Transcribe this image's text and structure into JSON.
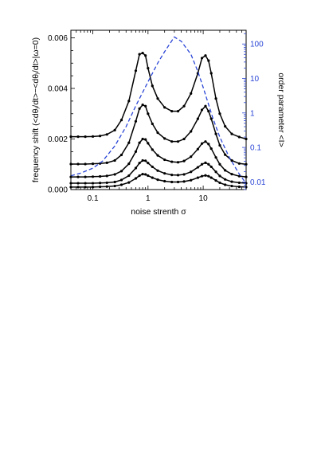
{
  "chart_data": {
    "type": "line",
    "title": "",
    "xlabel": "noise strenth σ",
    "ylabel": "frequency shift (<dθⱼ/dt>−<dθⱼ/dt>|ω=0)",
    "y2label": "order parameter <I>",
    "x_scale": "log",
    "xlim": [
      0.04,
      60
    ],
    "ylim": [
      0,
      0.0063
    ],
    "y2_scale": "log",
    "y2lim": [
      0.006,
      250
    ],
    "x_ticks": [
      0.1,
      1,
      10
    ],
    "x_tick_labels": [
      "0.1",
      "1",
      "10"
    ],
    "y_ticks": [
      0,
      0.002,
      0.004,
      0.006
    ],
    "y_tick_labels": [
      "0.000",
      "0.002",
      "0.004",
      "0.006"
    ],
    "y2_ticks": [
      0.01,
      0.1,
      1,
      10,
      100
    ],
    "y2_tick_labels": [
      "0.01",
      "0.1",
      "1",
      "10",
      "100"
    ],
    "colors": {
      "series": "#000000",
      "order_parameter": "#2a45d6",
      "axis": "#000000",
      "right_axis": "#2a45d6"
    },
    "legend": "none",
    "grid": false,
    "series": [
      {
        "axis": "left",
        "x": [
          0.04,
          0.054,
          0.073,
          0.1,
          0.135,
          0.18,
          0.25,
          0.33,
          0.45,
          0.6,
          0.7,
          0.8,
          0.9,
          1.0,
          1.2,
          1.5,
          2.0,
          2.7,
          3.5,
          4.5,
          6.0,
          8.0,
          9.5,
          11.0,
          12.5,
          14.0,
          17.0,
          20.0,
          25.0,
          33.0,
          45.0,
          60.0
        ],
        "values": [
          0.00209,
          0.00209,
          0.00209,
          0.0021,
          0.00212,
          0.00218,
          0.00235,
          0.00275,
          0.0035,
          0.0047,
          0.00535,
          0.0054,
          0.0053,
          0.0048,
          0.0041,
          0.0036,
          0.00325,
          0.0031,
          0.0031,
          0.0033,
          0.0038,
          0.0046,
          0.0052,
          0.0053,
          0.0051,
          0.0046,
          0.0036,
          0.003,
          0.0025,
          0.0022,
          0.00208,
          0.002
        ]
      },
      {
        "axis": "left",
        "x": [
          0.04,
          0.054,
          0.073,
          0.1,
          0.135,
          0.18,
          0.25,
          0.33,
          0.45,
          0.6,
          0.7,
          0.8,
          0.9,
          1.0,
          1.2,
          1.5,
          2.0,
          2.7,
          3.5,
          4.5,
          6.0,
          8.0,
          9.5,
          11.0,
          12.5,
          14.0,
          17.0,
          20.0,
          25.0,
          33.0,
          45.0,
          60.0
        ],
        "values": [
          0.00101,
          0.00101,
          0.00101,
          0.00102,
          0.00103,
          0.00106,
          0.00115,
          0.00137,
          0.00185,
          0.0027,
          0.0032,
          0.00335,
          0.0033,
          0.003,
          0.0026,
          0.00225,
          0.00202,
          0.0019,
          0.0019,
          0.002,
          0.0023,
          0.0028,
          0.00315,
          0.0033,
          0.0031,
          0.0028,
          0.0022,
          0.00175,
          0.00138,
          0.00115,
          0.00103,
          0.001
        ]
      },
      {
        "axis": "left",
        "x": [
          0.04,
          0.054,
          0.073,
          0.1,
          0.135,
          0.18,
          0.25,
          0.33,
          0.45,
          0.6,
          0.7,
          0.8,
          0.9,
          1.0,
          1.2,
          1.5,
          2.0,
          2.7,
          3.5,
          4.5,
          6.0,
          8.0,
          9.5,
          11.0,
          12.5,
          14.0,
          17.0,
          20.0,
          25.0,
          33.0,
          45.0,
          60.0
        ],
        "values": [
          0.0005,
          0.0005,
          0.0005,
          0.00051,
          0.00052,
          0.00054,
          0.0006,
          0.00073,
          0.00102,
          0.0015,
          0.00185,
          0.002,
          0.00198,
          0.00183,
          0.00158,
          0.00135,
          0.00118,
          0.0011,
          0.00108,
          0.00113,
          0.0013,
          0.0016,
          0.00182,
          0.0019,
          0.0018,
          0.00162,
          0.00127,
          0.001,
          0.00076,
          0.00061,
          0.00053,
          0.0005
        ]
      },
      {
        "axis": "left",
        "x": [
          0.04,
          0.054,
          0.073,
          0.1,
          0.135,
          0.18,
          0.25,
          0.33,
          0.45,
          0.6,
          0.7,
          0.8,
          0.9,
          1.0,
          1.2,
          1.5,
          2.0,
          2.7,
          3.5,
          4.5,
          6.0,
          8.0,
          9.5,
          11.0,
          12.5,
          14.0,
          17.0,
          20.0,
          25.0,
          33.0,
          45.0,
          60.0
        ],
        "values": [
          0.00025,
          0.00025,
          0.00025,
          0.00025,
          0.00026,
          0.00027,
          0.0003,
          0.00038,
          0.00055,
          0.00085,
          0.00105,
          0.00115,
          0.00114,
          0.00105,
          0.0009,
          0.00075,
          0.00064,
          0.00058,
          0.00057,
          0.0006,
          0.0007,
          0.00088,
          0.001,
          0.00106,
          0.001,
          0.0009,
          0.0007,
          0.00054,
          0.0004,
          0.00031,
          0.00027,
          0.00025
        ]
      },
      {
        "axis": "left",
        "x": [
          0.04,
          0.054,
          0.073,
          0.1,
          0.135,
          0.18,
          0.25,
          0.33,
          0.45,
          0.6,
          0.7,
          0.8,
          0.9,
          1.0,
          1.2,
          1.5,
          2.0,
          2.7,
          3.5,
          4.5,
          6.0,
          8.0,
          9.5,
          11.0,
          12.5,
          14.0,
          17.0,
          20.0,
          25.0,
          33.0,
          45.0,
          60.0
        ],
        "values": [
          0.0001,
          0.0001,
          0.0001,
          0.0001,
          0.00011,
          0.00012,
          0.00014,
          0.00019,
          0.00028,
          0.00044,
          0.00055,
          0.00061,
          0.0006,
          0.00055,
          0.00047,
          0.00039,
          0.00033,
          0.0003,
          0.0003,
          0.00032,
          0.00037,
          0.00047,
          0.00053,
          0.00056,
          0.00053,
          0.00047,
          0.00036,
          0.00027,
          0.00019,
          0.00014,
          0.00011,
          0.0001
        ]
      },
      {
        "axis": "right",
        "style": "dashed",
        "x": [
          0.04,
          0.06,
          0.1,
          0.15,
          0.25,
          0.4,
          0.6,
          1.0,
          1.5,
          2.0,
          3.0,
          4.0,
          6.0,
          8.0,
          10.0,
          15.0,
          20.0,
          30.0,
          45.0,
          60.0
        ],
        "values": [
          0.015,
          0.018,
          0.025,
          0.04,
          0.11,
          0.4,
          1.6,
          8.0,
          28.0,
          60.0,
          160.0,
          120.0,
          50.0,
          16.0,
          5.5,
          0.7,
          0.2,
          0.05,
          0.017,
          0.009
        ]
      }
    ]
  }
}
